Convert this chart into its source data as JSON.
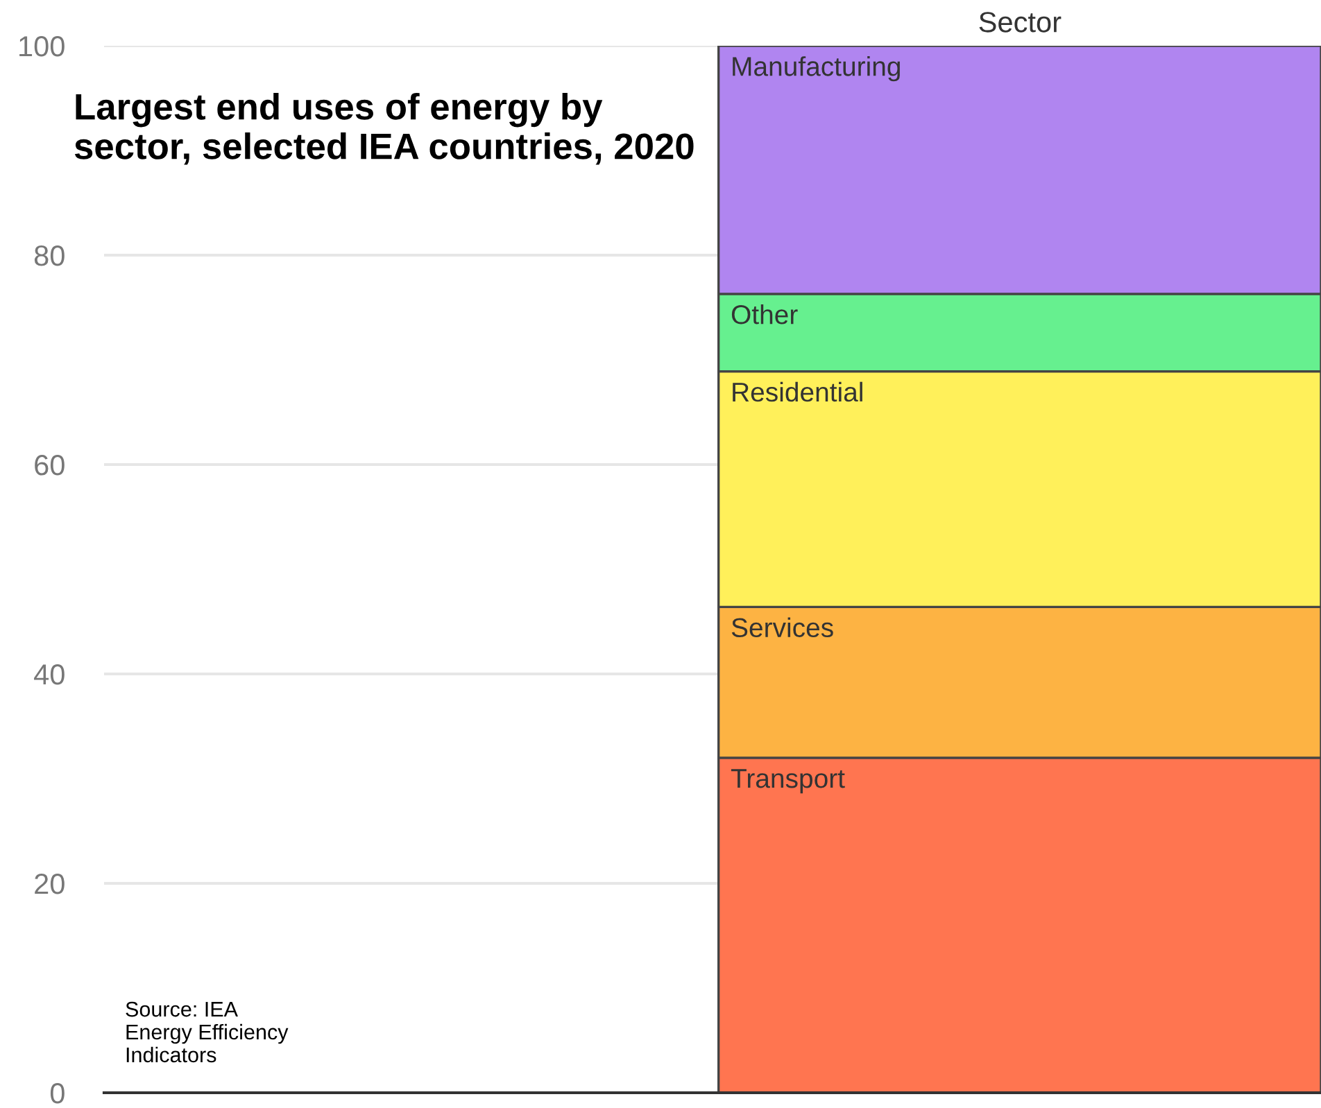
{
  "chart_data": {
    "type": "bar",
    "stacked": true,
    "title": "Largest end uses of energy by sector, selected IEA countries, 2020",
    "categories": [
      "Sector"
    ],
    "series": [
      {
        "name": "Transport",
        "color": "#ff7550",
        "values": [
          32
        ]
      },
      {
        "name": "Services",
        "color": "#fdb343",
        "values": [
          14.4
        ]
      },
      {
        "name": "Residential",
        "color": "#fff05a",
        "values": [
          22.5
        ]
      },
      {
        "name": "Other",
        "color": "#66f08f",
        "values": [
          7.4
        ]
      },
      {
        "name": "Manufacturing",
        "color": "#b085f0",
        "values": [
          23.7
        ]
      }
    ],
    "ylim": [
      0,
      100
    ],
    "yticks": [
      0,
      20,
      40,
      60,
      80,
      100
    ],
    "grid": "y",
    "legend": false,
    "annotations": [
      "Source: IEA\nEnergy Efficiency\nIndicators"
    ]
  }
}
